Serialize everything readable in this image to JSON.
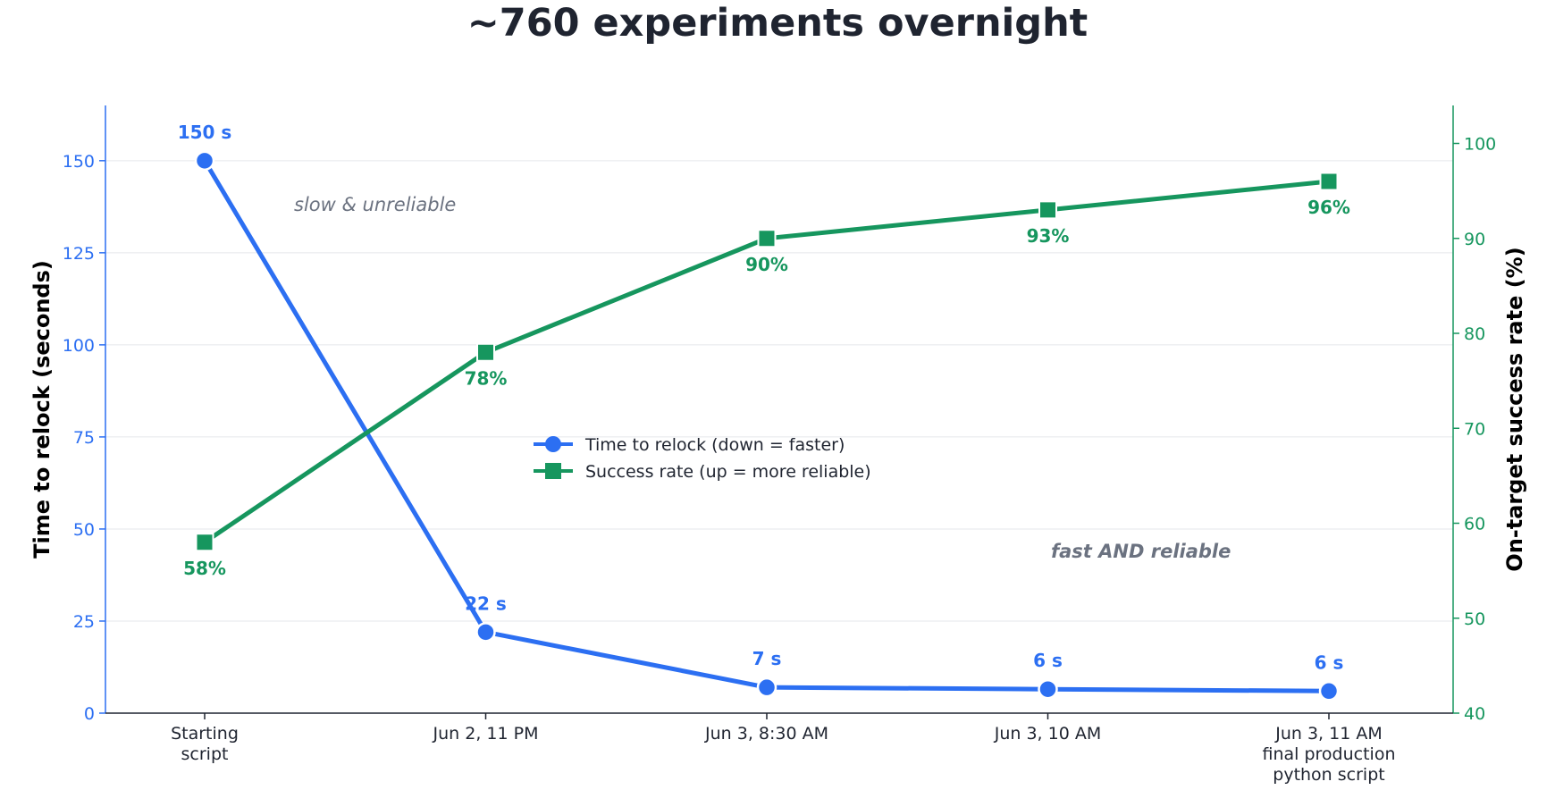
{
  "chart_data": {
    "type": "line",
    "title": "~760 experiments overnight",
    "categories": [
      [
        "Starting",
        "script"
      ],
      [
        "Jun 2, 11 PM"
      ],
      [
        "Jun 3, 8:30 AM"
      ],
      [
        "Jun 3, 10 AM"
      ],
      [
        "Jun 3, 11 AM",
        "final production",
        "python script"
      ]
    ],
    "series": [
      {
        "name": "Time to relock (down = faster)",
        "axis": "left",
        "marker": "circle",
        "color": "#2c6ff2",
        "values": [
          150,
          22,
          7,
          6.5,
          6
        ],
        "labels": [
          "150 s",
          "22 s",
          "7 s",
          "6 s",
          "6 s"
        ]
      },
      {
        "name": "Success rate (up = more reliable)",
        "axis": "right",
        "marker": "square",
        "color": "#16965e",
        "values": [
          58,
          78,
          90,
          93,
          96
        ],
        "labels": [
          "58%",
          "78%",
          "90%",
          "93%",
          "96%"
        ]
      }
    ],
    "ylabel_left": "Time to relock  (seconds)",
    "ylabel_right": "On-target success rate  (%)",
    "ylim_left": [
      0,
      165
    ],
    "yticks_left": [
      0,
      25,
      50,
      75,
      100,
      125,
      150
    ],
    "ylim_right": [
      40,
      104
    ],
    "yticks_right": [
      40,
      50,
      60,
      70,
      80,
      90,
      100
    ],
    "grid": true,
    "legend_position": "center",
    "annotations": [
      "slow & unreliable",
      "fast AND reliable"
    ],
    "colors": {
      "left_axis": "#2c6ff2",
      "right_axis": "#16965e",
      "grid": "#e5e7eb",
      "annotation": "#6b7280"
    }
  }
}
